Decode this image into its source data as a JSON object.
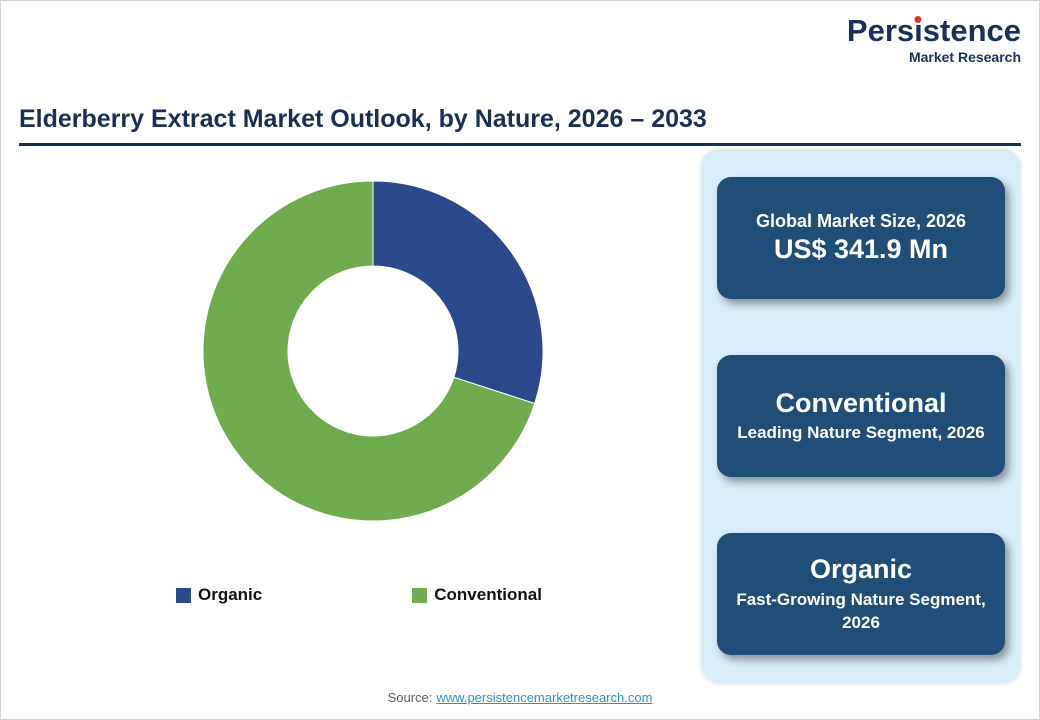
{
  "logo": {
    "brand_prefix": "Pers",
    "brand_i": "ı",
    "brand_suffix": "stence",
    "tagline": "Market Research",
    "brand_color": "#1b2f5e",
    "dot_color": "#e33227"
  },
  "header": {
    "title": "Elderberry Extract Market Outlook, by Nature, 2026 – 2033"
  },
  "chart_data": {
    "type": "pie",
    "subtype": "donut",
    "title": "Elderberry Extract Market Outlook, by Nature, 2026 – 2033",
    "categories": [
      "Organic",
      "Conventional"
    ],
    "values": [
      30,
      70
    ],
    "unit": "percent-share (estimated from arc angles, no labels shown)",
    "colors": [
      "#2b4a8c",
      "#6fac4d"
    ],
    "inner_radius_ratio": 0.5,
    "start_angle_deg": -90,
    "direction": "clockwise",
    "legend_position": "bottom"
  },
  "panel": {
    "background": "#d8edf8",
    "box_color": "#1f4e79",
    "boxes": [
      {
        "line1": "Global Market Size, 2026",
        "line2": "US$ 341.9 Mn"
      },
      {
        "line1": "Conventional",
        "line2": "Leading Nature Segment, 2026"
      },
      {
        "line1": "Organic",
        "line2": "Fast-Growing Nature Segment, 2026"
      }
    ]
  },
  "footer": {
    "source_label": "Source:",
    "source_link": "www.persistencemarketresearch.com"
  }
}
